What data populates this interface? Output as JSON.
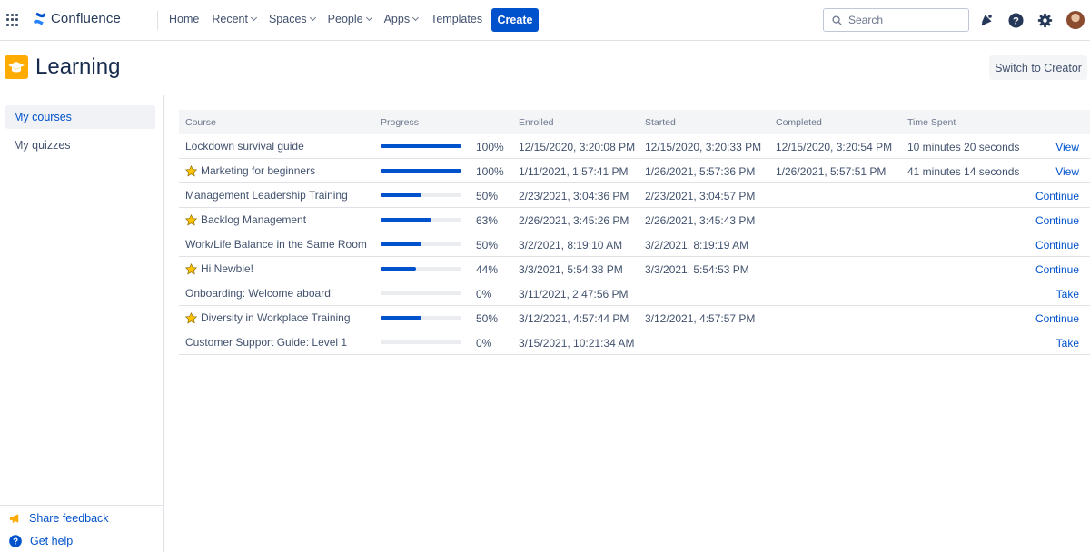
{
  "nav": {
    "brand": "Confluence",
    "items": [
      {
        "label": "Home",
        "dropdown": false
      },
      {
        "label": "Recent",
        "dropdown": true
      },
      {
        "label": "Spaces",
        "dropdown": true
      },
      {
        "label": "People",
        "dropdown": true
      },
      {
        "label": "Apps",
        "dropdown": true
      },
      {
        "label": "Templates",
        "dropdown": false
      }
    ],
    "create_label": "Create",
    "search_placeholder": "Search",
    "icons": [
      "app-switcher-icon",
      "notifications-icon",
      "help-icon",
      "settings-icon",
      "avatar"
    ]
  },
  "page": {
    "title": "Learning",
    "switch_label": "Switch to Creator"
  },
  "sidebar": {
    "items": [
      {
        "label": "My courses",
        "active": true
      },
      {
        "label": "My quizzes",
        "active": false
      }
    ],
    "footer": {
      "feedback": "Share feedback",
      "help": "Get help"
    }
  },
  "table": {
    "headers": {
      "course": "Course",
      "progress": "Progress",
      "enrolled": "Enrolled",
      "started": "Started",
      "completed": "Completed",
      "time_spent": "Time Spent"
    },
    "rows": [
      {
        "starred": false,
        "course": "Lockdown survival guide",
        "progress": 100,
        "progress_label": "100%",
        "enrolled": "12/15/2020, 3:20:08 PM",
        "started": "12/15/2020, 3:20:33 PM",
        "completed": "12/15/2020, 3:20:54 PM",
        "time_spent": "10 minutes 20 seconds",
        "action": "View"
      },
      {
        "starred": true,
        "course": "Marketing for beginners",
        "progress": 100,
        "progress_label": "100%",
        "enrolled": "1/11/2021, 1:57:41 PM",
        "started": "1/26/2021, 5:57:36 PM",
        "completed": "1/26/2021, 5:57:51 PM",
        "time_spent": "41 minutes 14 seconds",
        "action": "View"
      },
      {
        "starred": false,
        "course": "Management Leadership Training",
        "progress": 50,
        "progress_label": "50%",
        "enrolled": "2/23/2021, 3:04:36 PM",
        "started": "2/23/2021, 3:04:57 PM",
        "completed": "",
        "time_spent": "",
        "action": "Continue"
      },
      {
        "starred": true,
        "course": "Backlog Management",
        "progress": 63,
        "progress_label": "63%",
        "enrolled": "2/26/2021, 3:45:26 PM",
        "started": "2/26/2021, 3:45:43 PM",
        "completed": "",
        "time_spent": "",
        "action": "Continue"
      },
      {
        "starred": false,
        "course": "Work/Life Balance in the Same Room",
        "progress": 50,
        "progress_label": "50%",
        "enrolled": "3/2/2021, 8:19:10 AM",
        "started": "3/2/2021, 8:19:19 AM",
        "completed": "",
        "time_spent": "",
        "action": "Continue"
      },
      {
        "starred": true,
        "course": "Hi Newbie!",
        "progress": 44,
        "progress_label": "44%",
        "enrolled": "3/3/2021, 5:54:38 PM",
        "started": "3/3/2021, 5:54:53 PM",
        "completed": "",
        "time_spent": "",
        "action": "Continue"
      },
      {
        "starred": false,
        "course": "Onboarding: Welcome aboard!",
        "progress": 0,
        "progress_label": "0%",
        "enrolled": "3/11/2021, 2:47:56 PM",
        "started": "",
        "completed": "",
        "time_spent": "",
        "action": "Take"
      },
      {
        "starred": true,
        "course": "Diversity in Workplace Training",
        "progress": 50,
        "progress_label": "50%",
        "enrolled": "3/12/2021, 4:57:44 PM",
        "started": "3/12/2021, 4:57:57 PM",
        "completed": "",
        "time_spent": "",
        "action": "Continue"
      },
      {
        "starred": false,
        "course": "Customer Support Guide: Level 1",
        "progress": 0,
        "progress_label": "0%",
        "enrolled": "3/15/2021, 10:21:34 AM",
        "started": "",
        "completed": "",
        "time_spent": "",
        "action": "Take"
      }
    ]
  },
  "colors": {
    "accent": "#0052cc",
    "space_icon": "#ffab00",
    "star": "#ffc400"
  }
}
